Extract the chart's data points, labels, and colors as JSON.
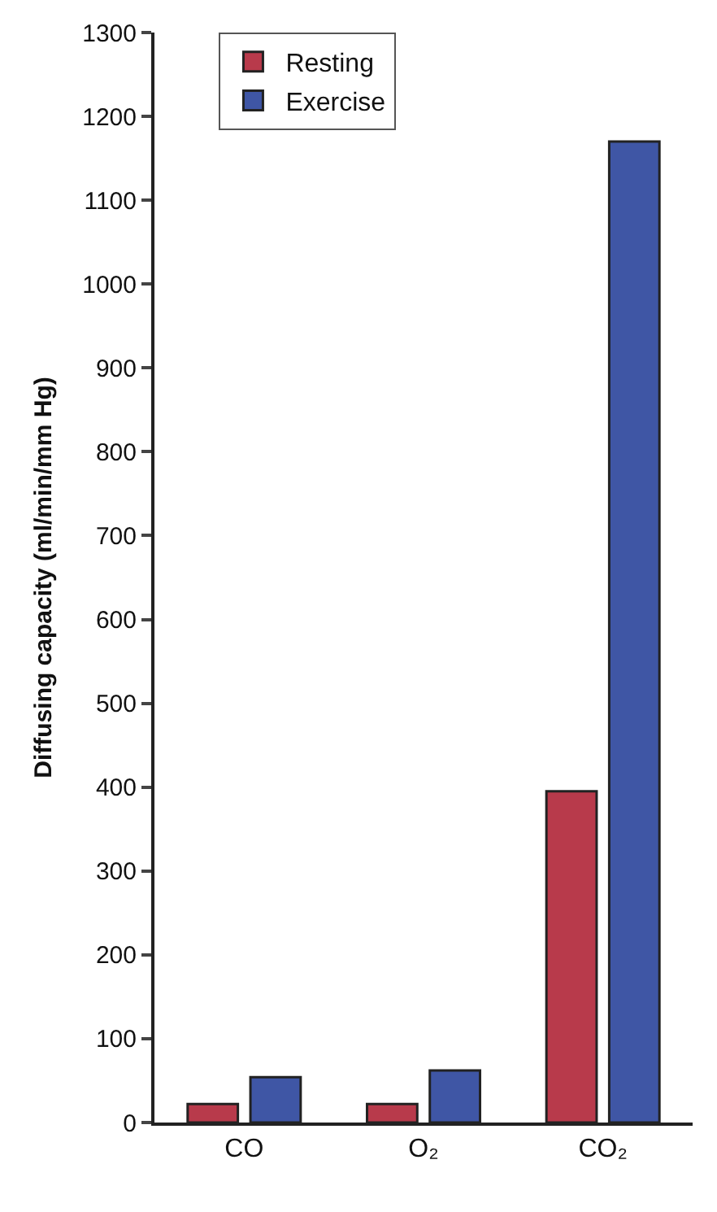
{
  "chart_data": {
    "type": "bar",
    "ylabel": "Diffusing capacity (ml/min/mm Hg)",
    "categories": [
      "CO",
      "O₂",
      "CO₂"
    ],
    "series": [
      {
        "name": "Resting",
        "color": "#b83a4b",
        "values": [
          22,
          22,
          395
        ]
      },
      {
        "name": "Exercise",
        "color": "#3f56a5",
        "values": [
          54,
          62,
          1170
        ]
      }
    ],
    "ylim": [
      0,
      1300
    ],
    "yticks": [
      0,
      100,
      200,
      300,
      400,
      500,
      600,
      700,
      800,
      900,
      1000,
      1100,
      1200,
      1300
    ],
    "legend": "top left"
  }
}
